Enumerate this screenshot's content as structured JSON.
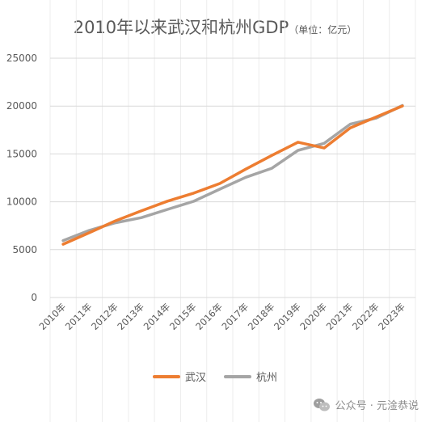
{
  "title": "2010年以来武汉和杭州GDP",
  "subtitle": "（单位：亿元）",
  "watermark": "公众号 · 元淦恭说",
  "colors": {
    "wuhan": "#ED7D31",
    "hangzhou": "#A5A5A5",
    "grid": "#D9D9D9",
    "axis_text": "#595959"
  },
  "chart_data": {
    "type": "line",
    "categories": [
      "2010年",
      "2011年",
      "2012年",
      "2013年",
      "2014年",
      "2015年",
      "2016年",
      "2017年",
      "2018年",
      "2019年",
      "2020年",
      "2021年",
      "2022年",
      "2023年"
    ],
    "series": [
      {
        "name": "武汉",
        "values": [
          5566,
          6762,
          8004,
          9051,
          10069,
          10906,
          11913,
          13410,
          14847,
          16223,
          15616,
          17717,
          18866,
          20012
        ]
      },
      {
        "name": "杭州",
        "values": [
          5949,
          7012,
          7804,
          8343,
          9206,
          10050,
          11314,
          12556,
          13509,
          15373,
          16106,
          18109,
          18753,
          20059
        ]
      }
    ],
    "ylim": [
      0,
      25000
    ],
    "yticks": [
      "0",
      "5000",
      "10000",
      "15000",
      "20000",
      "25000"
    ],
    "grid": true,
    "legend_position": "bottom"
  }
}
